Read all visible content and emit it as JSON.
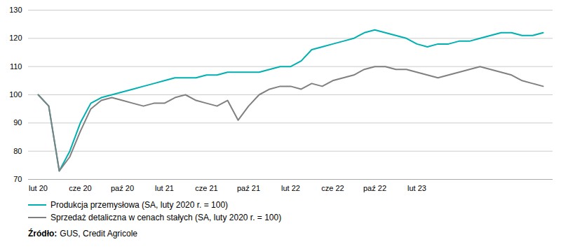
{
  "chart_data": {
    "type": "line",
    "categories": [
      "lut 20",
      null,
      null,
      null,
      "cze 20",
      null,
      null,
      null,
      "paź 20",
      null,
      null,
      null,
      "lut 21",
      null,
      null,
      null,
      "cze 21",
      null,
      null,
      null,
      "paź 21",
      null,
      null,
      null,
      "lut 22",
      null,
      null,
      null,
      "cze 22",
      null,
      null,
      null,
      "paź 22",
      null,
      null,
      null,
      "lut 23",
      null,
      null,
      null,
      null,
      null,
      null,
      null,
      null,
      null,
      null,
      null,
      null
    ],
    "series": [
      {
        "name": "Produkcja przemysłowa (SA, luty 2020 r. = 100)",
        "color": "#00B0B0",
        "values": [
          100,
          96,
          73,
          80,
          90,
          97,
          99,
          100,
          101,
          102,
          103,
          104,
          105,
          106,
          106,
          106,
          107,
          107,
          108,
          108,
          108,
          108,
          109,
          110,
          110,
          112,
          116,
          117,
          118,
          119,
          120,
          122,
          123,
          122,
          121,
          120,
          118,
          117,
          118,
          118,
          119,
          119,
          120,
          121,
          122,
          122,
          121,
          121,
          122
        ]
      },
      {
        "name": "Sprzedaż detaliczna w cenach stałych (SA, luty 2020 r. = 100)",
        "color": "#808080",
        "values": [
          100,
          96,
          73,
          78,
          87,
          95,
          98,
          99,
          98,
          97,
          96,
          97,
          97,
          99,
          100,
          98,
          97,
          96,
          98,
          91,
          96,
          100,
          102,
          103,
          103,
          102,
          104,
          103,
          105,
          106,
          107,
          109,
          110,
          110,
          109,
          109,
          108,
          107,
          106,
          107,
          108,
          109,
          110,
          109,
          108,
          107,
          105,
          104,
          103
        ]
      }
    ],
    "ylim": [
      70,
      130
    ],
    "yticks": [
      70,
      80,
      90,
      100,
      110,
      120,
      130
    ],
    "grid": true,
    "legend": "bottom",
    "source_label": "Źródło:",
    "source": "GUS, Credit Agricole"
  }
}
